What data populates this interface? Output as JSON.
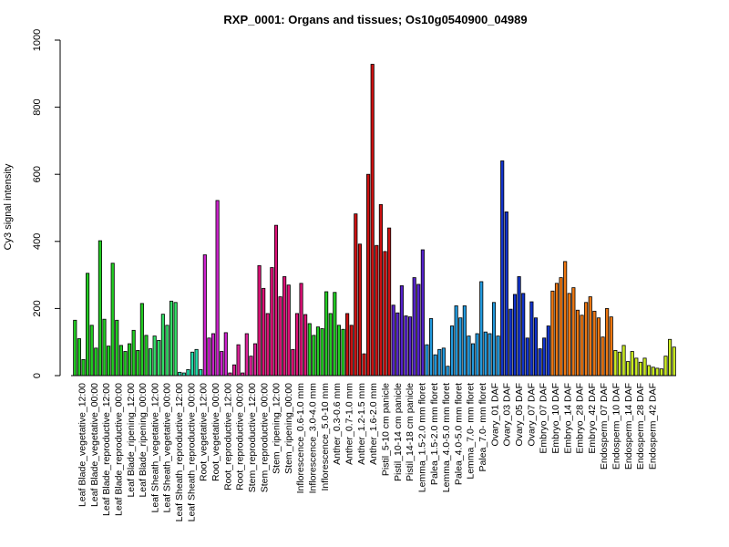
{
  "chart_data": {
    "type": "bar",
    "title": "RXP_0001: Organs and tissues; Os10g0540900_04989",
    "xlabel": "",
    "ylabel": "Cy3 signal intensity",
    "ylim": [
      0,
      1000
    ],
    "yticks": [
      0,
      200,
      400,
      600,
      800,
      1000
    ],
    "grid": false,
    "legend": "none",
    "tick_labels": [
      "Leaf Blade_vegetative_12:00",
      "Leaf Blade_vegetative_00:00",
      "Leaf Blade_reproductive_12:00",
      "Leaf Blade_reproductive_00:00",
      "Leaf Blade_ripening_12:00",
      "Leaf Blade_ripening_00:00",
      "Leaf Sheath_vegetative_12:00",
      "Leaf Sheath_vegetative_00:00",
      "Leaf Sheath_reproductive_12:00",
      "Leaf Sheath_reproductive_00:00",
      "Root_vegetative_12:00",
      "Root_vegetative_00:00",
      "Root_reproductive_12:00",
      "Root_reproductive_00:00",
      "Stem_reproductive_12:00",
      "Stem_reproductive_00:00",
      "Stem_ripening_12:00",
      "Stem_ripening_00:00",
      "Inflorescence_0.6-1.0 mm",
      "Inflorescence_3.0-4.0 mm",
      "Inflorescence_5.0-10 mm",
      "Anther_0.3-0.6 mm",
      "Anther_0.7-1.0 mm",
      "Anther_1.2-1.5 mm",
      "Anther_1.6-2.0 mm",
      "Pistil_5-10 cm panicle",
      "Pistil_10-14 cm panicle",
      "Pistil_14-18 cm panicle",
      "Lemma_1.5-2.0 mm floret",
      "Palea_1.5-2.0 mm floret",
      "Lemma_4.0-5.0 mm floret",
      "Palea_4.0-5.0 mm floret",
      "Lemma_7.0- mm floret",
      "Palea_7.0- mm floret",
      "Ovary_01 DAF",
      "Ovary_03 DAF",
      "Ovary_05 DAF",
      "Ovary_07 DAF",
      "Embryo_07 DAF",
      "Embryo_10 DAF",
      "Embryo_14 DAF",
      "Embryo_28 DAF",
      "Embryo_42 DAF",
      "Endosperm_07 DAF",
      "Endosperm_10 DAF",
      "Endosperm_14 DAF",
      "Endosperm_28 DAF",
      "Endosperm_42 DAF"
    ],
    "values": [
      165,
      110,
      48,
      305,
      150,
      82,
      402,
      168,
      88,
      335,
      165,
      90,
      72,
      95,
      135,
      75,
      215,
      120,
      80,
      118,
      105,
      183,
      150,
      222,
      218,
      10,
      8,
      18,
      70,
      78,
      18,
      360,
      112,
      125,
      522,
      72,
      128,
      8,
      32,
      92,
      8,
      125,
      58,
      95,
      328,
      260,
      185,
      322,
      448,
      235,
      295,
      270,
      78,
      185,
      275,
      182,
      155,
      120,
      145,
      140,
      250,
      185,
      248,
      150,
      138,
      185,
      150,
      482,
      392,
      65,
      600,
      928,
      388,
      510,
      370,
      440,
      210,
      187,
      268,
      178,
      175,
      292,
      272,
      375,
      92,
      170,
      62,
      78,
      82,
      28,
      148,
      208,
      172,
      208,
      118,
      95,
      125,
      280,
      130,
      125,
      218,
      118,
      640,
      488,
      198,
      242,
      295,
      245,
      112,
      220,
      172,
      80,
      112,
      148,
      252,
      275,
      292,
      340,
      245,
      262,
      195,
      180,
      218,
      235,
      192,
      172,
      115,
      200,
      175,
      75,
      70,
      90,
      42,
      72,
      52,
      40,
      52,
      30,
      25,
      22,
      20,
      58,
      108,
      85
    ],
    "bar_colors": [
      "#22cc22",
      "#22cc22",
      "#22cc22",
      "#22cc22",
      "#22cc22",
      "#22cc22",
      "#22cc22",
      "#22cc22",
      "#22cc22",
      "#22cc22",
      "#22cc22",
      "#22cc22",
      "#22cc22",
      "#22cc22",
      "#22cc22",
      "#22cc22",
      "#22cc22",
      "#22cc22",
      "#33dd66",
      "#33dd66",
      "#33dd66",
      "#33dd66",
      "#33dd66",
      "#33dd66",
      "#33dd66",
      "#22ddaa",
      "#22ddaa",
      "#22ddaa",
      "#22ddaa",
      "#22ddaa",
      "#22ddaa",
      "#cc22cc",
      "#cc22cc",
      "#cc22cc",
      "#cc22cc",
      "#cc22cc",
      "#cc22cc",
      "#dd2299",
      "#dd2299",
      "#dd2299",
      "#dd2299",
      "#dd2299",
      "#dd2299",
      "#dd2299",
      "#dd1177",
      "#dd1177",
      "#dd1177",
      "#dd1177",
      "#dd1177",
      "#dd1177",
      "#dd1177",
      "#dd1177",
      "#dd1177",
      "#dd1177",
      "#dd1177",
      "#dd1177",
      "#22cc22",
      "#22cc22",
      "#22cc22",
      "#22cc22",
      "#22cc22",
      "#22cc22",
      "#22cc22",
      "#22cc22",
      "#22cc22",
      "#cc1111",
      "#cc1111",
      "#cc1111",
      "#cc1111",
      "#cc1111",
      "#cc1111",
      "#cc1111",
      "#cc1111",
      "#cc1111",
      "#cc1111",
      "#cc1111",
      "#5522cc",
      "#5522cc",
      "#5522cc",
      "#5522cc",
      "#5522cc",
      "#5522cc",
      "#5522cc",
      "#5522cc",
      "#2299dd",
      "#2299dd",
      "#2299dd",
      "#2299dd",
      "#2299dd",
      "#2299dd",
      "#2299dd",
      "#2299dd",
      "#2299dd",
      "#2299dd",
      "#2299dd",
      "#2299dd",
      "#2299dd",
      "#2299dd",
      "#2299dd",
      "#2299dd",
      "#2299dd",
      "#2299dd",
      "#1133cc",
      "#1133cc",
      "#1133cc",
      "#1133cc",
      "#1133cc",
      "#1133cc",
      "#1133cc",
      "#1133cc",
      "#1133cc",
      "#1133cc",
      "#1133cc",
      "#1133cc",
      "#ee7711",
      "#ee7711",
      "#ee7711",
      "#ee7711",
      "#ee7711",
      "#ee7711",
      "#ee7711",
      "#ee7711",
      "#ee7711",
      "#ee7711",
      "#ee7711",
      "#ee7711",
      "#ee7711",
      "#ee7711",
      "#ee7711",
      "#ccee22",
      "#ccee22",
      "#ccee22",
      "#ccee22",
      "#ccee22",
      "#ccee22",
      "#ccee22",
      "#ccee22",
      "#ccee22",
      "#ccee22",
      "#ccee22",
      "#ccee22",
      "#ccee22",
      "#ccee22",
      "#ccee22"
    ]
  }
}
